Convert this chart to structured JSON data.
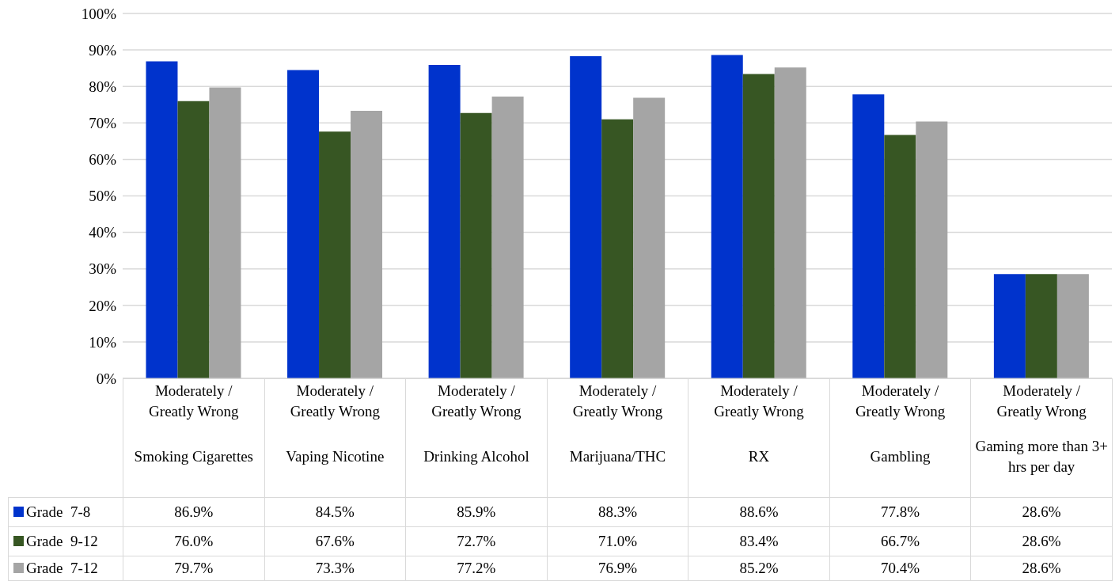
{
  "chart_data": {
    "type": "bar",
    "categories": [
      "Moderately / Greatly Wrong\nSmoking Cigarettes",
      "Moderately / Greatly Wrong\nVaping Nicotine",
      "Moderately / Greatly Wrong\nDrinking Alcohol",
      "Moderately / Greatly Wrong\nMarijuana/THC",
      "Moderately / Greatly Wrong\nRX",
      "Moderately / Greatly Wrong\nGambling",
      "Moderately / Greatly Wrong\nGaming more than 3+ hrs per day"
    ],
    "series": [
      {
        "name": "Grade  7-8",
        "color": "#0033cc",
        "values": [
          86.9,
          84.5,
          85.9,
          88.3,
          88.6,
          77.8,
          28.6
        ],
        "value_labels": [
          "86.9%",
          "84.5%",
          "85.9%",
          "88.3%",
          "88.6%",
          "77.8%",
          "28.6%"
        ]
      },
      {
        "name": "Grade  9-12",
        "color": "#375623",
        "values": [
          76.0,
          67.6,
          72.7,
          71.0,
          83.4,
          66.7,
          28.6
        ],
        "value_labels": [
          "76.0%",
          "67.6%",
          "72.7%",
          "71.0%",
          "83.4%",
          "66.7%",
          "28.6%"
        ]
      },
      {
        "name": "Grade  7-12",
        "color": "#a5a5a5",
        "values": [
          79.7,
          73.3,
          77.2,
          76.9,
          85.2,
          70.4,
          28.6
        ],
        "value_labels": [
          "79.7%",
          "73.3%",
          "77.2%",
          "76.9%",
          "85.2%",
          "70.4%",
          "28.6%"
        ]
      }
    ],
    "ylim": [
      0,
      100
    ],
    "yticks": [
      {
        "value": 0,
        "label": "0%"
      },
      {
        "value": 10,
        "label": "10%"
      },
      {
        "value": 20,
        "label": "20%"
      },
      {
        "value": 30,
        "label": "30%"
      },
      {
        "value": 40,
        "label": "40%"
      },
      {
        "value": 50,
        "label": "50%"
      },
      {
        "value": 60,
        "label": "60%"
      },
      {
        "value": 70,
        "label": "70%"
      },
      {
        "value": 80,
        "label": "80%"
      },
      {
        "value": 90,
        "label": "90%"
      },
      {
        "value": 100,
        "label": "100%"
      }
    ],
    "grid": "y",
    "legend": "bottom left"
  }
}
